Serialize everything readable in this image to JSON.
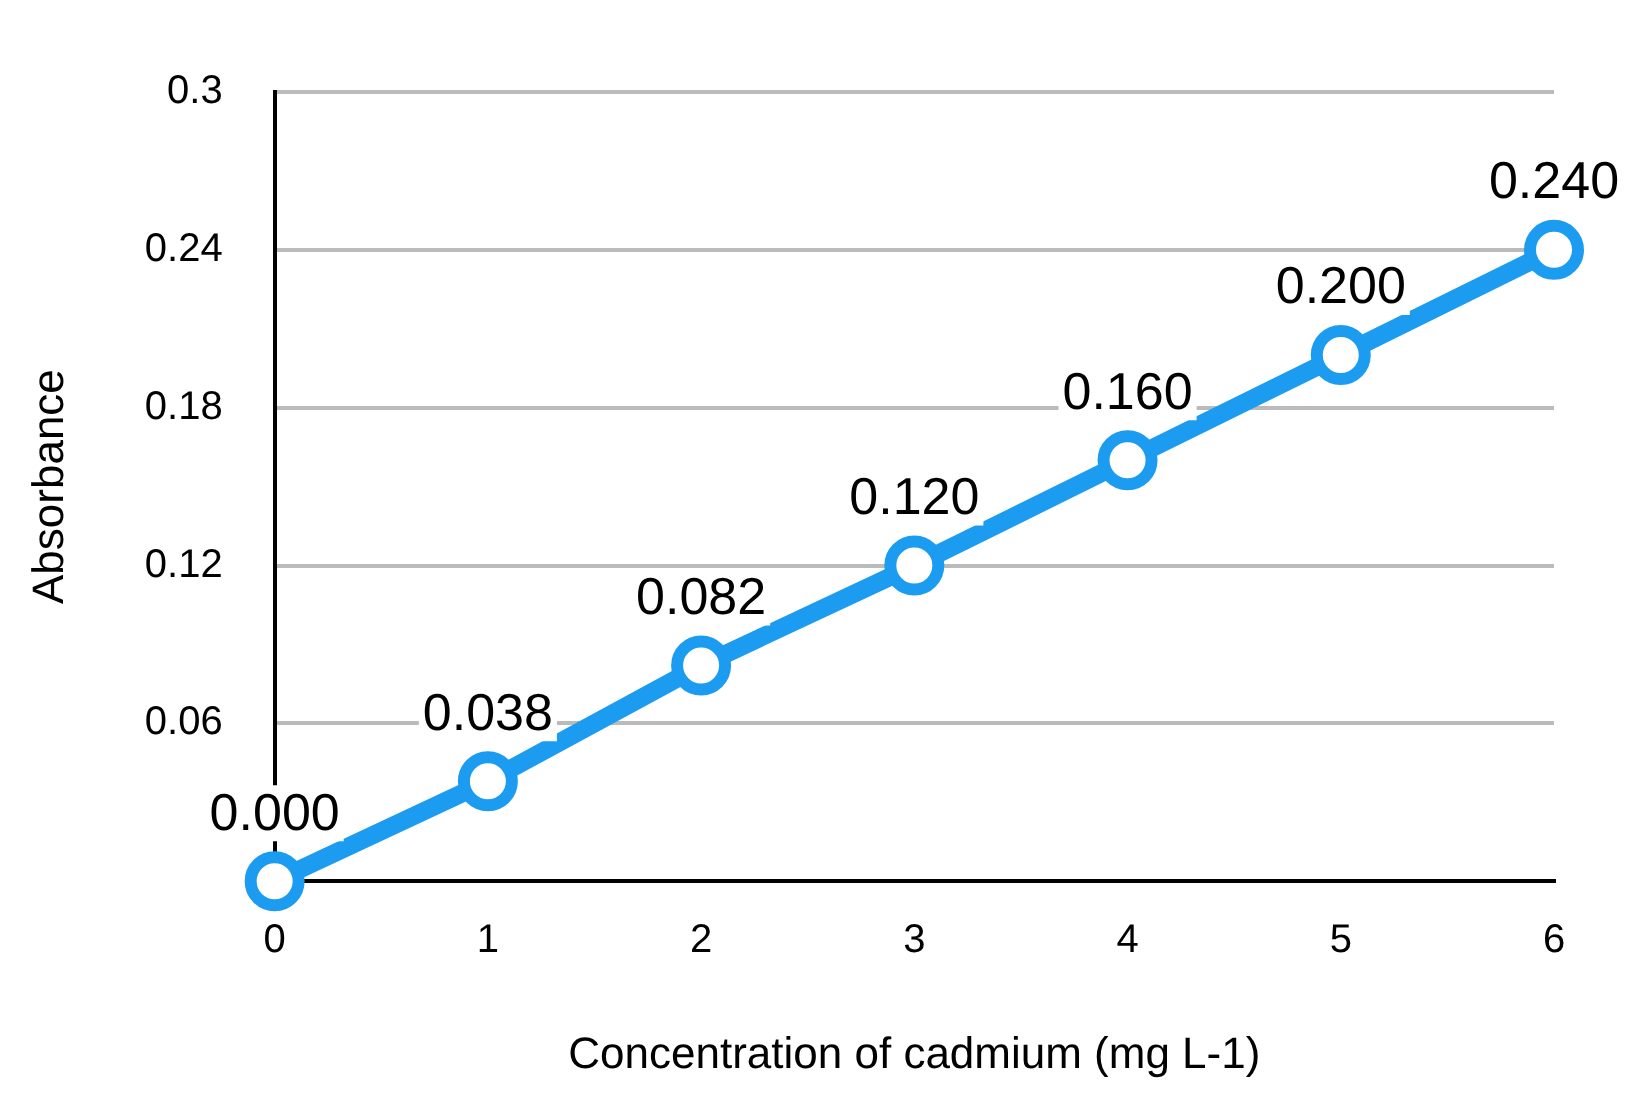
{
  "chart_data": {
    "type": "line",
    "xlabel": "Concentration of cadmium (mg L-1)",
    "ylabel": "Absorbance",
    "x": [
      0,
      1,
      2,
      3,
      4,
      5,
      6
    ],
    "series": [
      {
        "color": "#1c9cf0",
        "values": [
          0,
          0.038,
          0.082,
          0.12,
          0.16,
          0.2,
          0.24
        ],
        "value_labels": [
          "0.000",
          "0.038",
          "0.082",
          "0.120",
          "0.160",
          "0.200",
          "0.240"
        ]
      }
    ],
    "xlim": [
      0,
      6
    ],
    "xticks": [
      0,
      1,
      2,
      3,
      4,
      5,
      6
    ],
    "ylim": [
      0,
      0.3
    ],
    "yticks": [
      {
        "value": 0,
        "label": null
      },
      0.06,
      0.12,
      0.18,
      0.24,
      0.3
    ],
    "grid": "y",
    "legend": false,
    "marker": "circle",
    "line_style": "solid"
  }
}
